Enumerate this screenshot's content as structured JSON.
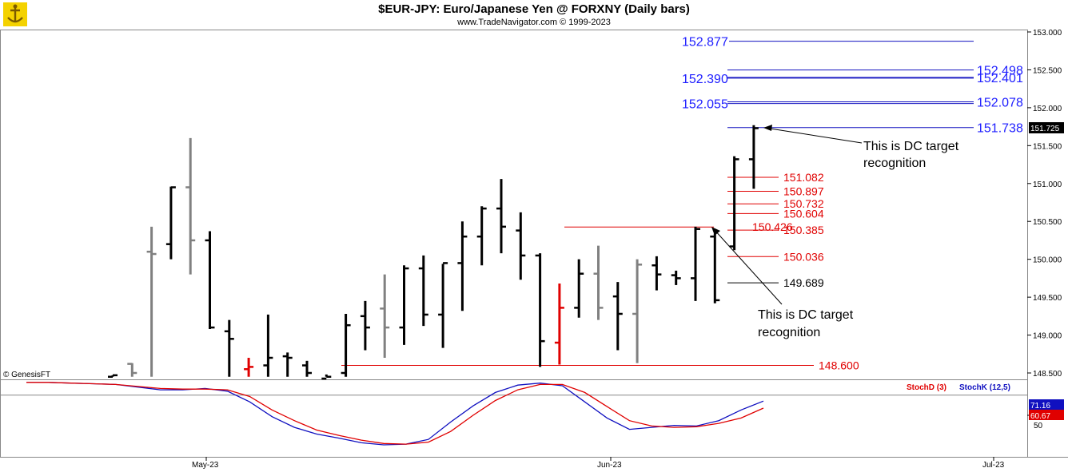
{
  "header": {
    "title": "$EUR-JPY:  Euro/Japanese Yen @ FORXNY  (Daily bars)",
    "subtitle": "www.TradeNavigator.com © 1999-2023",
    "watermark": "© GenesisFT"
  },
  "colors": {
    "bull_bar": "#000000",
    "bear_bar": "#808080",
    "signal_bar": "#e00000",
    "projection_blue": "#1010c0",
    "projection_red": "#e00000",
    "label_blue": "#2020ff",
    "label_red": "#e00000",
    "stochK": "#1010c0",
    "stochD": "#e00000"
  },
  "chart_data": [
    {
      "type": "ohlc",
      "title": "$EUR-JPY:  Euro/Japanese Yen @ FORXNY  (Daily bars)",
      "ylim": [
        148.45,
        153.0
      ],
      "y_ticks": [
        "153.000",
        "152.500",
        "152.000",
        "151.500",
        "151.000",
        "150.500",
        "150.000",
        "149.500",
        "149.000",
        "148.500"
      ],
      "x_labels": [
        "May-23",
        "Jun-23",
        "Jul-23"
      ],
      "last_price": "151.725",
      "bars": [
        {
          "o": 148.45,
          "h": 148.47,
          "l": 148.45,
          "c": 148.47,
          "color": "bull"
        },
        {
          "o": 148.62,
          "h": 148.63,
          "l": 148.45,
          "c": 148.5,
          "color": "bear"
        },
        {
          "o": 150.1,
          "h": 150.43,
          "l": 148.45,
          "c": 150.07,
          "color": "bear"
        },
        {
          "o": 150.2,
          "h": 150.96,
          "l": 150.0,
          "c": 150.95,
          "color": "bull"
        },
        {
          "o": 150.95,
          "h": 151.6,
          "l": 149.8,
          "c": 150.25,
          "color": "bear"
        },
        {
          "o": 150.25,
          "h": 150.37,
          "l": 149.08,
          "c": 149.1,
          "color": "bull"
        },
        {
          "o": 149.05,
          "h": 149.2,
          "l": 148.45,
          "c": 148.95,
          "color": "bull"
        },
        {
          "o": 148.55,
          "h": 148.7,
          "l": 148.45,
          "c": 148.58,
          "color": "red"
        },
        {
          "o": 148.6,
          "h": 149.27,
          "l": 148.45,
          "c": 148.7,
          "color": "bull"
        },
        {
          "o": 148.72,
          "h": 148.77,
          "l": 148.45,
          "c": 148.7,
          "color": "bull"
        },
        {
          "o": 148.6,
          "h": 148.66,
          "l": 148.45,
          "c": 148.5,
          "color": "bull"
        },
        {
          "o": 148.42,
          "h": 148.48,
          "l": 148.45,
          "c": 148.45,
          "color": "bull"
        },
        {
          "o": 148.5,
          "h": 149.28,
          "l": 148.45,
          "c": 149.13,
          "color": "bull"
        },
        {
          "o": 149.25,
          "h": 149.45,
          "l": 148.8,
          "c": 149.1,
          "color": "bull"
        },
        {
          "o": 149.35,
          "h": 149.8,
          "l": 148.7,
          "c": 149.1,
          "color": "bear"
        },
        {
          "o": 149.1,
          "h": 149.92,
          "l": 148.87,
          "c": 149.88,
          "color": "bull"
        },
        {
          "o": 149.88,
          "h": 150.05,
          "l": 149.12,
          "c": 149.27,
          "color": "bull"
        },
        {
          "o": 149.27,
          "h": 149.94,
          "l": 148.83,
          "c": 149.95,
          "color": "bull"
        },
        {
          "o": 149.95,
          "h": 150.5,
          "l": 149.32,
          "c": 150.3,
          "color": "bull"
        },
        {
          "o": 150.3,
          "h": 150.7,
          "l": 149.92,
          "c": 150.67,
          "color": "bull"
        },
        {
          "o": 150.67,
          "h": 151.06,
          "l": 150.08,
          "c": 150.43,
          "color": "bull"
        },
        {
          "o": 150.38,
          "h": 150.62,
          "l": 149.73,
          "c": 150.05,
          "color": "bull"
        },
        {
          "o": 150.05,
          "h": 150.08,
          "l": 148.58,
          "c": 148.92,
          "color": "bull"
        },
        {
          "o": 148.9,
          "h": 149.68,
          "l": 148.61,
          "c": 149.36,
          "color": "red"
        },
        {
          "o": 149.36,
          "h": 150.0,
          "l": 149.23,
          "c": 149.81,
          "color": "bull"
        },
        {
          "o": 149.81,
          "h": 150.18,
          "l": 149.2,
          "c": 149.36,
          "color": "bear"
        },
        {
          "o": 149.51,
          "h": 149.7,
          "l": 148.8,
          "c": 149.28,
          "color": "bull"
        },
        {
          "o": 149.28,
          "h": 150.0,
          "l": 148.63,
          "c": 149.93,
          "color": "bear"
        },
        {
          "o": 149.92,
          "h": 150.04,
          "l": 149.59,
          "c": 149.8,
          "color": "bull"
        },
        {
          "o": 149.79,
          "h": 149.85,
          "l": 149.66,
          "c": 149.75,
          "color": "bull"
        },
        {
          "o": 149.75,
          "h": 150.43,
          "l": 149.45,
          "c": 150.4,
          "color": "bull"
        },
        {
          "o": 150.3,
          "h": 150.34,
          "l": 149.42,
          "c": 149.46,
          "color": "bull"
        },
        {
          "o": 150.17,
          "h": 151.36,
          "l": 150.12,
          "c": 151.32,
          "color": "bull"
        },
        {
          "o": 151.32,
          "h": 151.77,
          "l": 150.93,
          "c": 151.73,
          "color": "bull"
        }
      ],
      "levels": [
        {
          "value": 152.877,
          "label": "152.877",
          "side": "left",
          "color": "blue"
        },
        {
          "value": 152.498,
          "label": "152.498",
          "side": "right",
          "color": "blue"
        },
        {
          "value": 152.401,
          "label": "152.401",
          "side": "right",
          "color": "blue"
        },
        {
          "value": 152.39,
          "label": "152.390",
          "side": "left",
          "color": "blue"
        },
        {
          "value": 152.078,
          "label": "152.078",
          "side": "right",
          "color": "blue"
        },
        {
          "value": 152.055,
          "label": "152.055",
          "side": "left",
          "color": "blue"
        },
        {
          "value": 151.738,
          "label": "151.738",
          "side": "right",
          "color": "blue"
        },
        {
          "value": 151.082,
          "label": "151.082",
          "side": "right",
          "color": "red"
        },
        {
          "value": 150.897,
          "label": "150.897",
          "side": "right",
          "color": "red"
        },
        {
          "value": 150.732,
          "label": "150.732",
          "side": "right",
          "color": "red"
        },
        {
          "value": 150.604,
          "label": "150.604",
          "side": "right",
          "color": "red"
        },
        {
          "value": 150.426,
          "label": "150.426",
          "side": "left",
          "color": "red"
        },
        {
          "value": 150.385,
          "label": "150.385",
          "side": "right",
          "color": "red"
        },
        {
          "value": 150.036,
          "label": "150.036",
          "side": "right",
          "color": "red"
        },
        {
          "value": 149.689,
          "label": "149.689",
          "side": "right",
          "color": "black"
        },
        {
          "value": 148.6,
          "label": "148.600",
          "side": "right",
          "color": "red"
        }
      ],
      "annotations": [
        {
          "text": "This is DC target recognition"
        },
        {
          "text": "This is DC target recognition"
        }
      ]
    },
    {
      "type": "line",
      "ylim": [
        0,
        100
      ],
      "y_ticks": [
        "50"
      ],
      "series": [
        {
          "name": "StochK (12,5)",
          "last": "71.16",
          "values": [
            99,
            99,
            98,
            97,
            96,
            92,
            88,
            88,
            90,
            86,
            70,
            48,
            32,
            22,
            16,
            9,
            6,
            7,
            14,
            40,
            64,
            84,
            95,
            98,
            94,
            70,
            46,
            29,
            32,
            35,
            34,
            42,
            58,
            71.16
          ]
        },
        {
          "name": "StochD (3)",
          "last": "60.67",
          "values": [
            99,
            99,
            98,
            97,
            96,
            93,
            90,
            89,
            89,
            88,
            78,
            58,
            42,
            28,
            20,
            13,
            8,
            7,
            10,
            26,
            50,
            72,
            88,
            96,
            96,
            84,
            63,
            42,
            34,
            32,
            33,
            38,
            46,
            60.67
          ]
        }
      ]
    }
  ]
}
